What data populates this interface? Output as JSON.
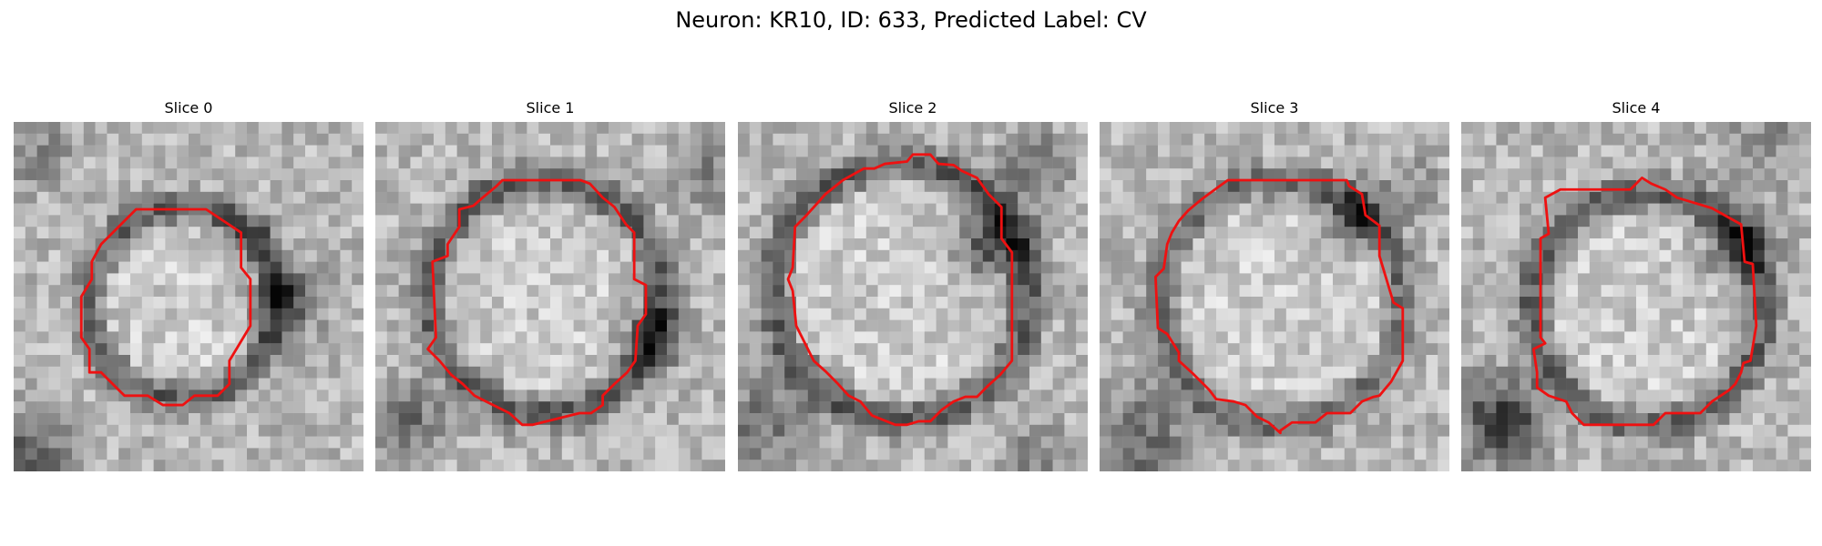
{
  "figure": {
    "title": "Neuron: KR10, ID: 633, Predicted Label: CV"
  },
  "colors": {
    "background": "#ffffff",
    "contour": "#ee1111"
  },
  "slices": [
    {
      "title": "Slice 0"
    },
    {
      "title": "Slice 1"
    },
    {
      "title": "Slice 2"
    },
    {
      "title": "Slice 3"
    },
    {
      "title": "Slice 4"
    }
  ]
}
